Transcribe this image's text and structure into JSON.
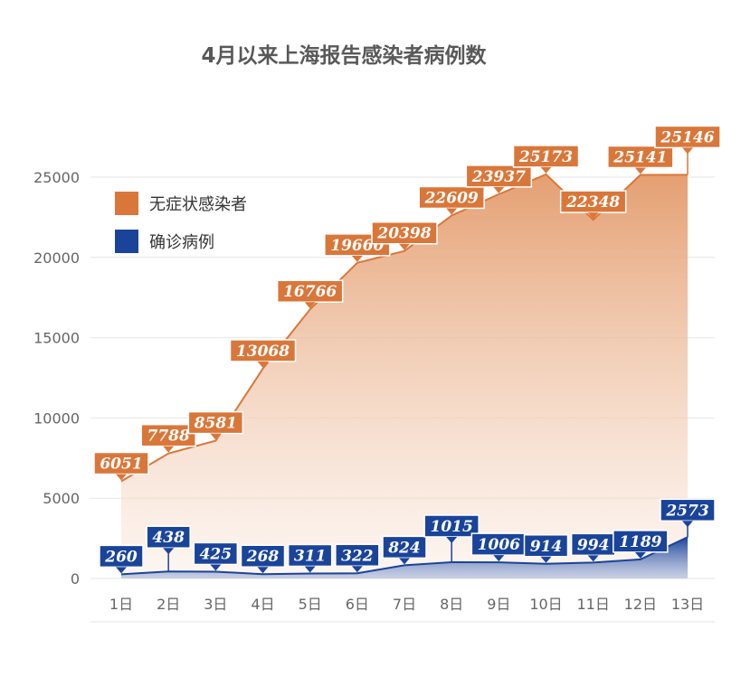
{
  "chart_data": {
    "type": "area",
    "title": "4月以来上海报告感染者病例数",
    "categories": [
      "1日",
      "2日",
      "3日",
      "4日",
      "5日",
      "6日",
      "7日",
      "8日",
      "9日",
      "10日",
      "11日",
      "12日",
      "13日"
    ],
    "series": [
      {
        "name": "无症状感染者",
        "color": "#D9773A",
        "values": [
          6051,
          7788,
          8581,
          13068,
          16766,
          19660,
          20398,
          22609,
          23937,
          25173,
          22348,
          25141,
          25146
        ]
      },
      {
        "name": "确诊病例",
        "color": "#1A449A",
        "values": [
          260,
          438,
          425,
          268,
          311,
          322,
          824,
          1015,
          1006,
          914,
          994,
          1189,
          2573
        ]
      }
    ],
    "yticks": [
      0,
      5000,
      10000,
      15000,
      20000,
      25000
    ],
    "ylim": [
      0,
      25000
    ],
    "grid": true,
    "legend": "top-left",
    "data_labels": true
  }
}
